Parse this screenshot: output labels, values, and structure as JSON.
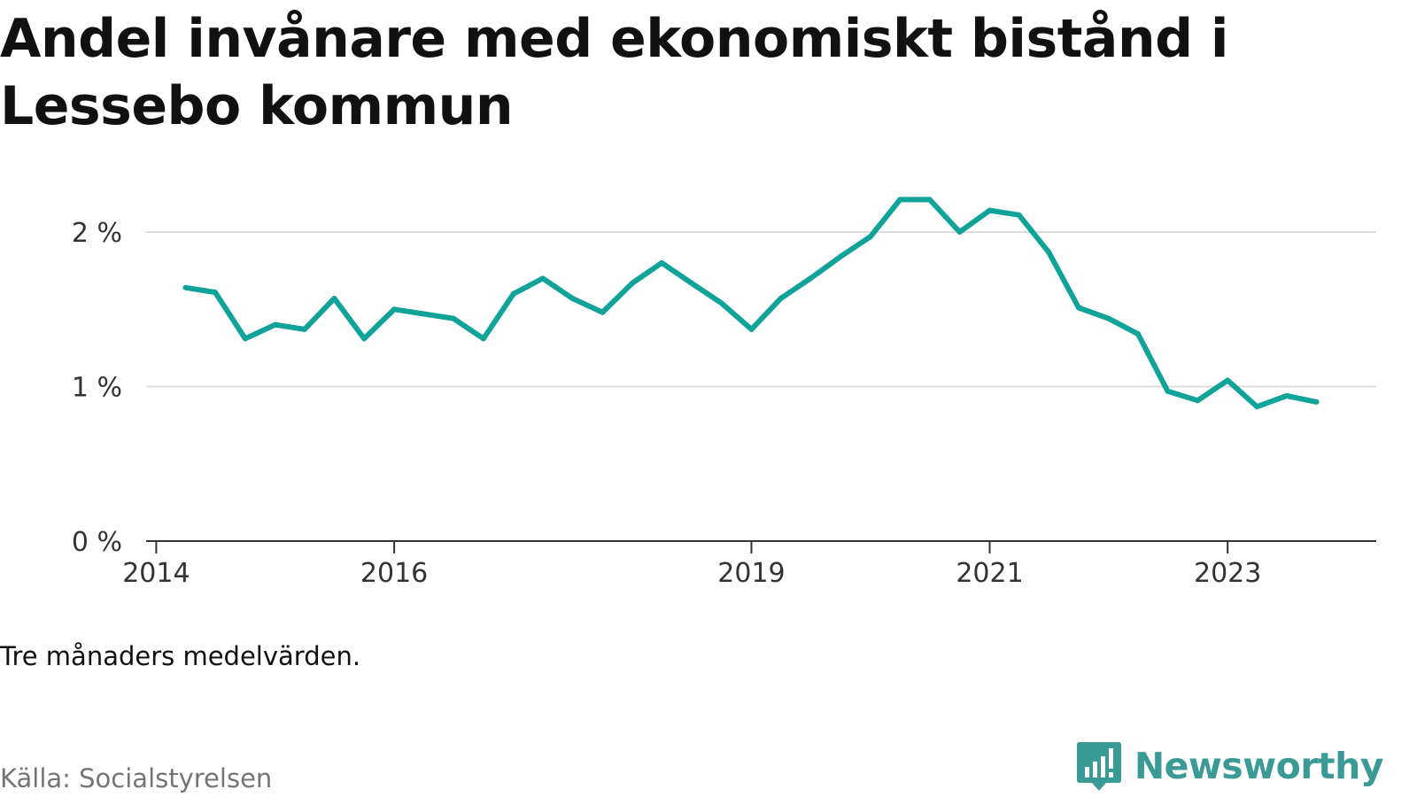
{
  "title": "Andel invånare med ekonomiskt bistånd i Lessebo kommun",
  "note": "Tre månaders medelvärden.",
  "source": "Källa: Socialstyrelsen",
  "brand": {
    "name": "Newsworthy",
    "icon": "newsworthy-logo-icon",
    "color": "#3a9b96"
  },
  "colors": {
    "line": "#0fa39a",
    "grid": "#dddddd",
    "axis": "#333333"
  },
  "chart_data": {
    "type": "line",
    "title": "Andel invånare med ekonomiskt bistånd i Lessebo kommun",
    "xlabel": "",
    "ylabel": "",
    "x_range": [
      "2013-12-01",
      "2024-04-01"
    ],
    "xticks": [
      {
        "date": "2014-01-01",
        "label": "2014"
      },
      {
        "date": "2016-01-01",
        "label": "2016"
      },
      {
        "date": "2019-01-01",
        "label": "2019"
      },
      {
        "date": "2021-01-01",
        "label": "2021"
      },
      {
        "date": "2023-01-01",
        "label": "2023"
      }
    ],
    "ylim": [
      0,
      2.2
    ],
    "yticks": [
      {
        "value": 0,
        "label": "0 %"
      },
      {
        "value": 1,
        "label": "1 %"
      },
      {
        "value": 2,
        "label": "2 %"
      }
    ],
    "grid": true,
    "series": [
      {
        "points": [
          [
            "2014-04-01",
            1.64
          ],
          [
            "2014-07-01",
            1.61
          ],
          [
            "2014-10-01",
            1.31
          ],
          [
            "2015-01-01",
            1.4
          ],
          [
            "2015-04-01",
            1.37
          ],
          [
            "2015-07-01",
            1.57
          ],
          [
            "2015-10-01",
            1.31
          ],
          [
            "2016-01-01",
            1.5
          ],
          [
            "2016-04-01",
            1.47
          ],
          [
            "2016-07-01",
            1.44
          ],
          [
            "2016-10-01",
            1.31
          ],
          [
            "2017-01-01",
            1.6
          ],
          [
            "2017-04-01",
            1.7
          ],
          [
            "2017-07-01",
            1.57
          ],
          [
            "2017-10-01",
            1.48
          ],
          [
            "2018-01-01",
            1.67
          ],
          [
            "2018-04-01",
            1.8
          ],
          [
            "2018-07-01",
            1.67
          ],
          [
            "2018-10-01",
            1.54
          ],
          [
            "2019-01-01",
            1.37
          ],
          [
            "2019-04-01",
            1.57
          ],
          [
            "2019-07-01",
            1.7
          ],
          [
            "2019-10-01",
            1.84
          ],
          [
            "2020-01-01",
            1.97
          ],
          [
            "2020-04-01",
            2.21
          ],
          [
            "2020-07-01",
            2.21
          ],
          [
            "2020-10-01",
            2.0
          ],
          [
            "2021-01-01",
            2.14
          ],
          [
            "2021-04-01",
            2.11
          ],
          [
            "2021-07-01",
            1.87
          ],
          [
            "2021-10-01",
            1.51
          ],
          [
            "2022-01-01",
            1.44
          ],
          [
            "2022-04-01",
            1.34
          ],
          [
            "2022-07-01",
            0.97
          ],
          [
            "2022-10-01",
            0.91
          ],
          [
            "2023-01-01",
            1.04
          ],
          [
            "2023-04-01",
            0.87
          ],
          [
            "2023-07-01",
            0.94
          ],
          [
            "2023-10-01",
            0.9
          ]
        ]
      }
    ]
  }
}
